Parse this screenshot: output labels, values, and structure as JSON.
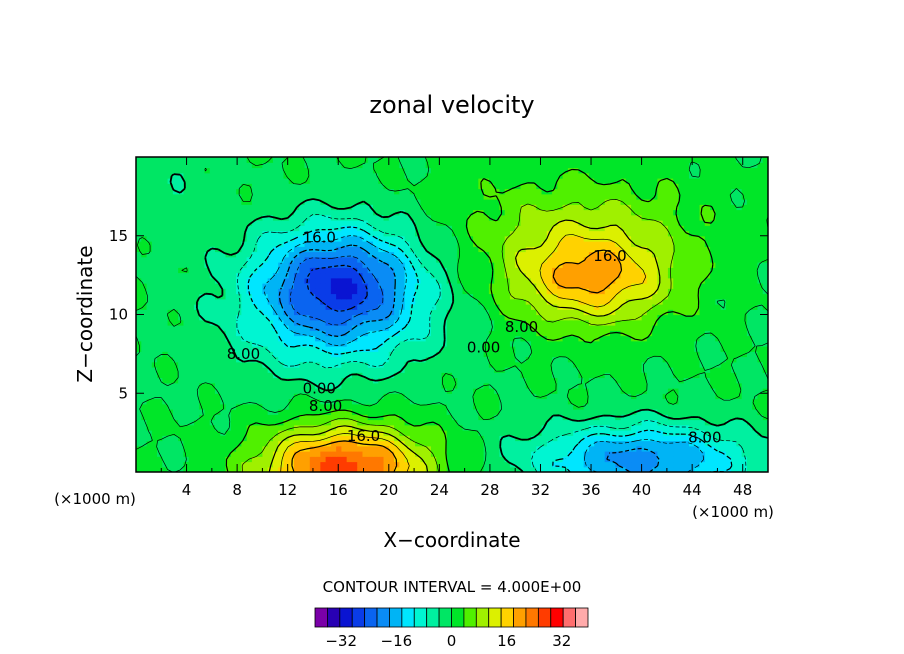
{
  "chart_data": {
    "type": "contour",
    "title": "zonal velocity",
    "xlabel": "X−coordinate",
    "ylabel": "Z−coordinate",
    "x_unit": "(×1000 m)",
    "x_unit_right": "(×1000 m)",
    "xlim": [
      0,
      50
    ],
    "ylim": [
      0,
      20
    ],
    "x_ticks": [
      "4",
      "8",
      "12",
      "16",
      "20",
      "24",
      "28",
      "32",
      "36",
      "40",
      "44",
      "48"
    ],
    "y_ticks": [
      "5",
      "10",
      "15"
    ],
    "contour_interval_text": "CONTOUR INTERVAL = 4.000E+00",
    "contour_labels": [
      {
        "text": "16.0",
        "x": 14.5,
        "z": 14.9
      },
      {
        "text": "8.00",
        "x": 8.5,
        "z": 7.5
      },
      {
        "text": "0.00",
        "x": 14.5,
        "z": 5.3
      },
      {
        "text": "8.00",
        "x": 15.0,
        "z": 4.2
      },
      {
        "text": "16.0",
        "x": 18.0,
        "z": 2.3
      },
      {
        "text": "16.0",
        "x": 37.5,
        "z": 13.7
      },
      {
        "text": "8.00",
        "x": 30.5,
        "z": 9.2
      },
      {
        "text": "0.00",
        "x": 27.5,
        "z": 7.9
      },
      {
        "text": "8.00",
        "x": 45.0,
        "z": 2.2
      }
    ],
    "features": [
      {
        "kind": "min",
        "x": 16.0,
        "z": 11.6,
        "peak": -26
      },
      {
        "kind": "max",
        "x": 35.0,
        "z": 12.0,
        "peak": 22
      },
      {
        "kind": "max",
        "x": 16.0,
        "z": 1.0,
        "peak": 24
      },
      {
        "kind": "min",
        "x": 40.0,
        "z": 1.2,
        "peak": -16
      }
    ],
    "colorbar": {
      "levels": [
        -36,
        -32,
        -28,
        -24,
        -20,
        -16,
        -12,
        -8,
        -4,
        0,
        4,
        8,
        12,
        16,
        20,
        24,
        28,
        32,
        36
      ],
      "tick_labels": [
        "−32",
        "−16",
        "0",
        "16",
        "32"
      ],
      "tick_values": [
        -32,
        -16,
        0,
        16,
        32
      ],
      "colors": [
        "#7a00a8",
        "#2800b4",
        "#0a14d2",
        "#0a3ce8",
        "#0a64f0",
        "#0a8cf5",
        "#00b4f5",
        "#00e6ff",
        "#00f5d2",
        "#00f0a0",
        "#00e664",
        "#00e628",
        "#50f000",
        "#a0f000",
        "#dcf000",
        "#ffd200",
        "#ffa000",
        "#ff7800",
        "#ff3c00",
        "#ff0000",
        "#ff6e6e",
        "#ffaaaa"
      ]
    }
  }
}
